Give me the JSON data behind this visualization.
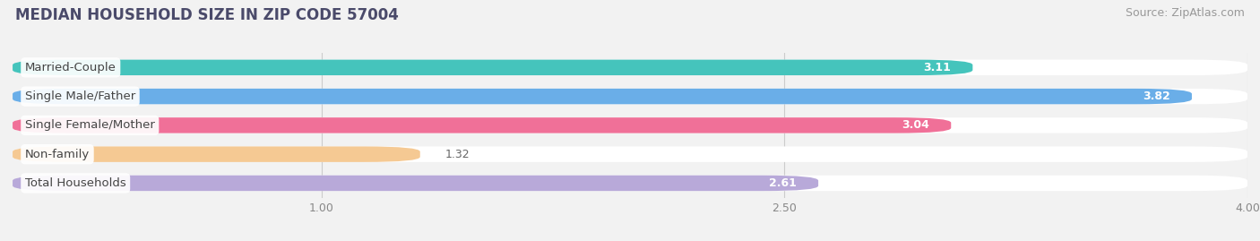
{
  "title": "MEDIAN HOUSEHOLD SIZE IN ZIP CODE 57004",
  "source": "Source: ZipAtlas.com",
  "categories": [
    "Married-Couple",
    "Single Male/Father",
    "Single Female/Mother",
    "Non-family",
    "Total Households"
  ],
  "values": [
    3.11,
    3.82,
    3.04,
    1.32,
    2.61
  ],
  "bar_colors": [
    "#45c4bc",
    "#6aaee8",
    "#f07098",
    "#f5c993",
    "#b8a9d9"
  ],
  "xlim": [
    0,
    4.0
  ],
  "xstart": 0,
  "xticks": [
    1.0,
    2.5,
    4.0
  ],
  "xtick_labels": [
    "1.00",
    "2.50",
    "4.00"
  ],
  "title_fontsize": 12,
  "source_fontsize": 9,
  "bar_height": 0.62,
  "label_fontsize": 9.5,
  "value_fontsize": 9,
  "background_color": "#f2f2f2",
  "bar_bg_color": "#e4e4e4"
}
